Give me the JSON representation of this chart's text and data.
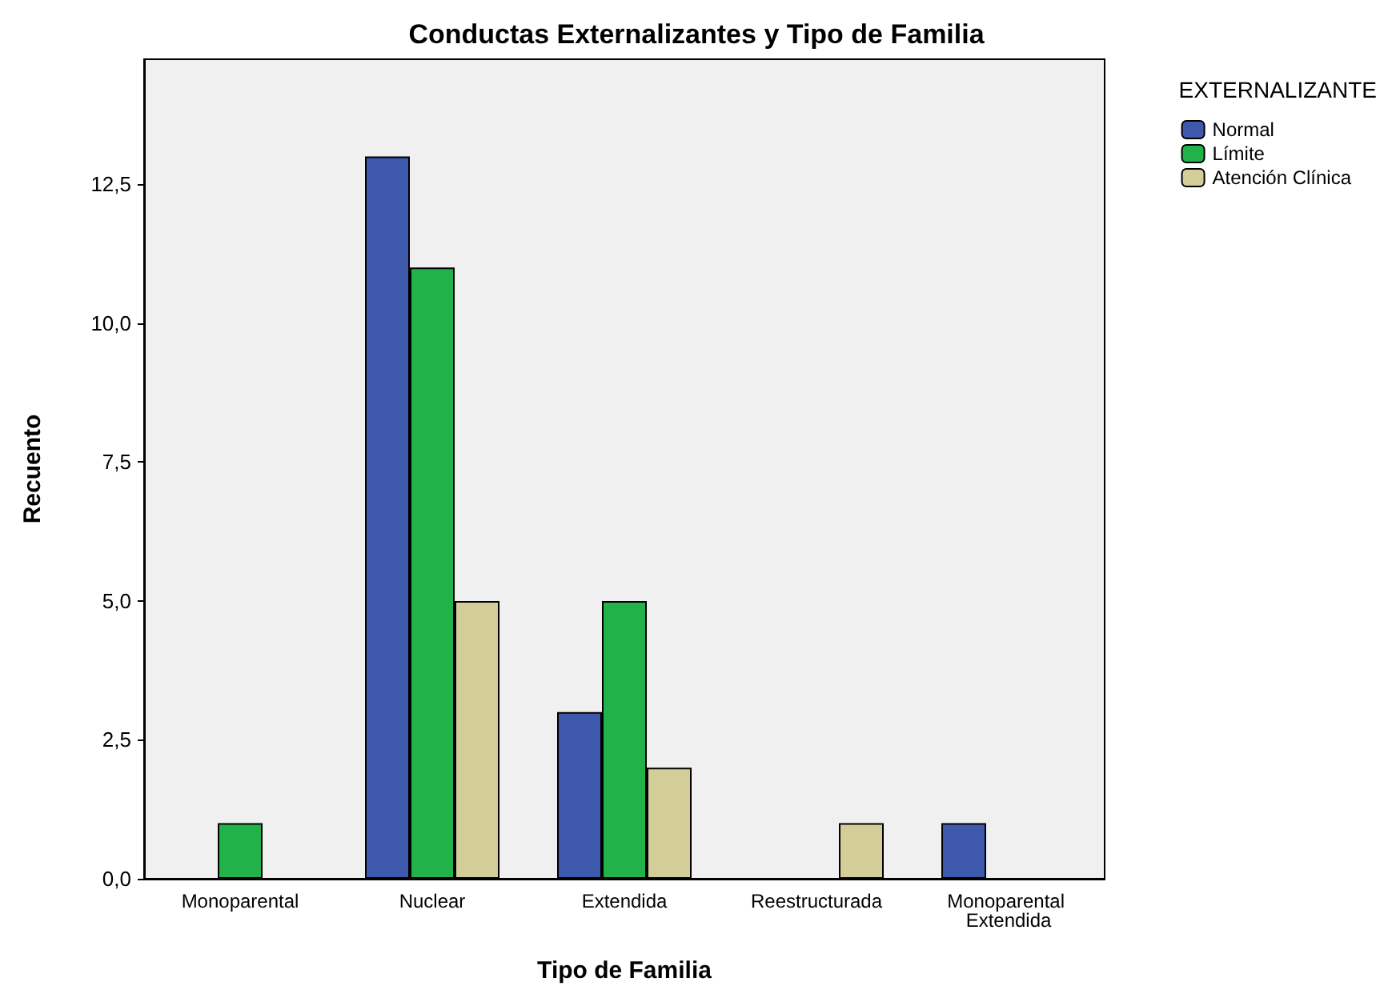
{
  "chart_data": {
    "type": "bar",
    "title": "Conductas Externalizantes y Tipo de Familia",
    "xlabel": "Tipo de Familia",
    "ylabel": "Recuento",
    "legend_title": "EXTERNALIZANTE",
    "categories": [
      "Monoparental",
      "Nuclear",
      "Extendida",
      "Reestructurada",
      "Monoparental Extendida"
    ],
    "series": [
      {
        "name": "Normal",
        "color": "#3e58ac",
        "values": [
          null,
          13,
          3,
          null,
          1
        ]
      },
      {
        "name": "Límite",
        "color": "#21b24a",
        "values": [
          1,
          11,
          5,
          null,
          null
        ]
      },
      {
        "name": "Atención Clínica",
        "color": "#d3ce98",
        "values": [
          null,
          5,
          2,
          1,
          null
        ]
      }
    ],
    "ylim": [
      0,
      14.75
    ],
    "yticks": [
      {
        "value": 0,
        "label": "0,0"
      },
      {
        "value": 2.5,
        "label": "2,5"
      },
      {
        "value": 5,
        "label": "5,0"
      },
      {
        "value": 7.5,
        "label": "7,5"
      },
      {
        "value": 10,
        "label": "10,0"
      },
      {
        "value": 12.5,
        "label": "12,5"
      }
    ],
    "grid": false,
    "legend": "top right"
  }
}
